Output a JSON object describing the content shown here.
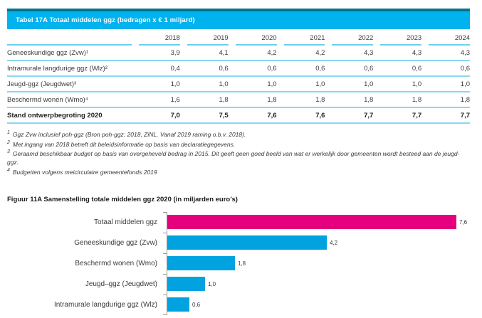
{
  "table": {
    "title": "Tabel 17A Totaal middelen ggz (bedragen x € 1 miljard)",
    "columns": [
      "2018",
      "2019",
      "2020",
      "2021",
      "2022",
      "2023",
      "2024"
    ],
    "rows": [
      {
        "label": "Geneeskundige ggz (Zvw)¹",
        "values": [
          "3,9",
          "4,1",
          "4,2",
          "4,2",
          "4,3",
          "4,3",
          "4,3"
        ],
        "emphasis": false
      },
      {
        "label": "Intramurale langdurige ggz (Wlz)²",
        "values": [
          "0,4",
          "0,6",
          "0,6",
          "0,6",
          "0,6",
          "0,6",
          "0,6"
        ],
        "emphasis": false
      },
      {
        "label": "Jeugd-ggz (Jeugdwet)³",
        "values": [
          "1,0",
          "1,0",
          "1,0",
          "1,0",
          "1,0",
          "1,0",
          "1,0"
        ],
        "emphasis": false
      },
      {
        "label": "Beschermd wonen (Wmo)⁴",
        "values": [
          "1,6",
          "1,8",
          "1,8",
          "1,8",
          "1,8",
          "1,8",
          "1,8"
        ],
        "emphasis": false
      },
      {
        "label": "Stand ontwerpbegroting 2020",
        "values": [
          "7,0",
          "7,5",
          "7,6",
          "7,6",
          "7,7",
          "7,7",
          "7,7"
        ],
        "emphasis": true
      }
    ],
    "footnotes": [
      {
        "marker": "1",
        "text": "Ggz Zvw inclusief poh-ggz (Bron poh-ggz: 2018, ZiNL. Vanaf 2019 raming o.b.v. 2018)."
      },
      {
        "marker": "2",
        "text": "Met ingang van 2018 betreft dit beleidsinformatie op basis van declaratiegegevens."
      },
      {
        "marker": "3",
        "text": "Geraamd beschikbaar budget op basis van overgeheveld bedrag in 2015. Dit geeft geen goed beeld van wat er werkelijk door gemeenten wordt besteed aan de jeugd-ggz."
      },
      {
        "marker": "4",
        "text": "Budgetten volgens meicirculaire gemeentefonds 2019"
      }
    ]
  },
  "figure": {
    "title": "Figuur 11A Samenstelling totale middelen ggz 2020 (in miljarden euro’s)"
  },
  "chart_data": {
    "type": "bar",
    "orientation": "horizontal",
    "title": "Figuur 11A Samenstelling totale middelen ggz 2020 (in miljarden euro’s)",
    "categories": [
      "Totaal middelen ggz",
      "Geneeskundige ggz (Zvw)",
      "Beschermd wonen (Wmo)",
      "Jeugd–ggz (Jeugdwet)",
      "Intramurale langdurige ggz (Wlz)"
    ],
    "values": [
      7.6,
      4.2,
      1.8,
      1.0,
      0.6
    ],
    "value_labels": [
      "7,6",
      "4,2",
      "1,8",
      "1,0",
      "0,6"
    ],
    "xlim": [
      0,
      7.6
    ],
    "unit": "miljarden euro's",
    "bar_colors": [
      "#e5007d",
      "#00a3e0",
      "#00a3e0",
      "#00a3e0",
      "#00a3e0"
    ],
    "grid": false,
    "legend": false
  },
  "colors": {
    "title_bar_background": "#00b2ee",
    "title_bar_top_border": "#00758d",
    "header_underline": "#6fcdf2",
    "row_separator": "#8ad7f3",
    "bar_highlight": "#e5007d",
    "bar_default": "#00a3e0",
    "text": "#3a3a39"
  }
}
